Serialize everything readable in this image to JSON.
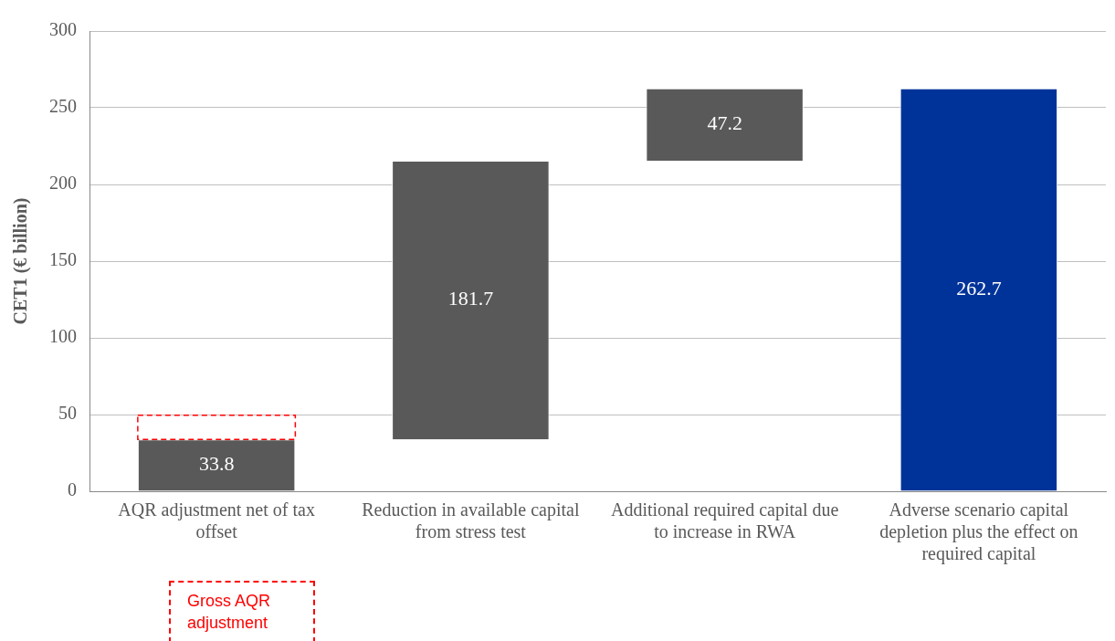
{
  "chart_data": {
    "type": "bar",
    "ylabel": "CET1 (€ billion)",
    "categories": [
      "AQR adjustment net of tax offset",
      "Reduction in available capital from stress test",
      "Additional required capital due to increase in RWA",
      "Adverse scenario capital depletion plus the effect on required capital"
    ],
    "series": [
      {
        "colors": [
          "#595959",
          "#595959",
          "#595959",
          "#003399"
        ],
        "values": [
          33.8,
          181.7,
          47.2,
          262.7
        ],
        "base": [
          0,
          33.8,
          215.5,
          0
        ],
        "value_labels": [
          "33.8",
          "181.7",
          "47.2",
          "262.7"
        ]
      },
      {
        "name": "Gross AQR adjustment",
        "color": "#ff0000",
        "line_style": "dashed",
        "values": [
          15.7,
          null,
          null,
          null
        ],
        "base": [
          33.8,
          null,
          null,
          null
        ]
      }
    ],
    "ylim": [
      0,
      300
    ],
    "yticks": [
      0,
      50,
      100,
      150,
      200,
      250,
      300
    ],
    "grid": "y",
    "legend": "bottom left"
  }
}
